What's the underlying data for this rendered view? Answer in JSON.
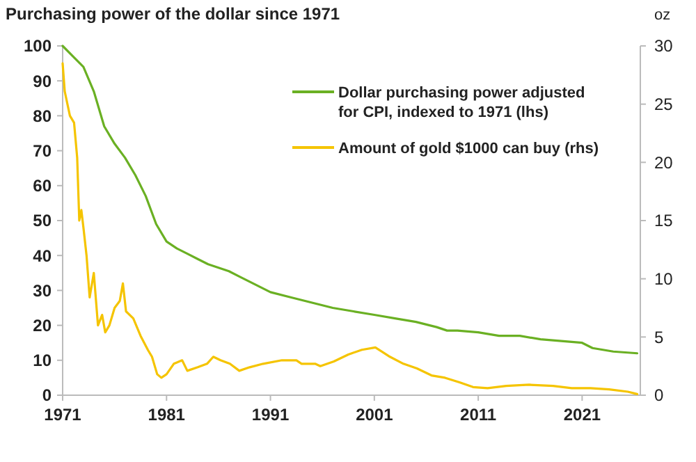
{
  "chart_data": {
    "type": "line",
    "title": "Purchasing power of the dollar since 1971",
    "y2label": "oz",
    "xlim": [
      1971,
      2026.6
    ],
    "xticks": [
      1971,
      1981,
      1991,
      2001,
      2011,
      2021
    ],
    "ylim": [
      0,
      100
    ],
    "yticks": [
      0,
      10,
      20,
      30,
      40,
      50,
      60,
      70,
      80,
      90,
      100
    ],
    "y2lim": [
      0,
      30
    ],
    "y2ticks": [
      0,
      5,
      10,
      15,
      20,
      25,
      30
    ],
    "legend": "top right",
    "grid": false,
    "series": [
      {
        "name": "Dollar purchasing power adjusted for CPI, indexed to 1971 (lhs)",
        "color": "#6ab023",
        "x": [
          1971,
          1972,
          1973,
          1974,
          1975,
          1976,
          1977,
          1978,
          1979,
          1980,
          1981,
          1982,
          1983,
          1984,
          1985,
          1986,
          1987,
          1988,
          1989,
          1990,
          1991,
          1993,
          1995,
          1997,
          1999,
          2001,
          2003,
          2005,
          2007,
          2008,
          2009,
          2011,
          2013,
          2015,
          2017,
          2019,
          2021,
          2022,
          2024,
          2026.3
        ],
        "values": [
          100,
          97,
          94,
          87,
          77,
          72,
          68,
          63,
          57,
          49,
          44,
          42,
          40.5,
          39,
          37.5,
          36.5,
          35.5,
          34,
          32.5,
          31,
          29.5,
          28,
          26.5,
          25,
          24,
          23,
          22,
          21,
          19.5,
          18.5,
          18.5,
          18,
          17,
          17,
          16,
          15.5,
          15,
          13.5,
          12.5,
          12
        ]
      },
      {
        "name": "Amount of gold $1000 can buy (rhs)",
        "color": "#f5c400",
        "axis": "y2",
        "x": [
          1971,
          1971.2,
          1971.7,
          1972.1,
          1972.4,
          1972.6,
          1972.8,
          1973,
          1973.3,
          1973.6,
          1974,
          1974.4,
          1974.8,
          1975.1,
          1975.5,
          1976,
          1976.5,
          1976.8,
          1977.1,
          1977.8,
          1978.5,
          1979.2,
          1979.6,
          1980.1,
          1980.5,
          1981,
          1981.7,
          1982.5,
          1983,
          1984,
          1984.9,
          1985.5,
          1986.2,
          1987.1,
          1988,
          1989,
          1990.3,
          1992.1,
          1993.5,
          1994,
          1995.3,
          1995.8,
          1997.1,
          1998.5,
          1999.8,
          2001.1,
          2002.5,
          2003.8,
          2005.1,
          2006.5,
          2007.8,
          2009.2,
          2010.5,
          2011.9,
          2013.7,
          2015.9,
          2018.2,
          2020,
          2021.8,
          2023.6,
          2025.4,
          2026.3
        ],
        "values": [
          28.5,
          26.1,
          24,
          23.4,
          20.4,
          15,
          15.9,
          14.4,
          12,
          8.4,
          10.5,
          6,
          6.9,
          5.4,
          6,
          7.5,
          8.1,
          9.6,
          7.2,
          6.6,
          5.1,
          3.9,
          3.3,
          1.8,
          1.5,
          1.8,
          2.7,
          3,
          2.1,
          2.4,
          2.7,
          3.3,
          3,
          2.7,
          2.1,
          2.4,
          2.7,
          3,
          3,
          2.7,
          2.7,
          2.5,
          2.9,
          3.5,
          3.9,
          4.1,
          3.3,
          2.7,
          2.3,
          1.7,
          1.5,
          1.1,
          0.7,
          0.6,
          0.8,
          0.9,
          0.8,
          0.6,
          0.6,
          0.5,
          0.3,
          0.1
        ]
      }
    ]
  }
}
